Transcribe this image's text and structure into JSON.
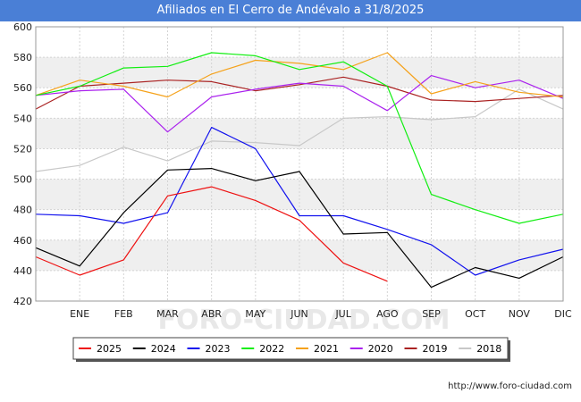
{
  "chart_data": {
    "type": "line",
    "title": "Afiliados en El Cerro de Andévalo a 31/8/2025",
    "xlabel": "",
    "ylabel": "",
    "categories": [
      "",
      "ENE",
      "FEB",
      "MAR",
      "ABR",
      "MAY",
      "JUN",
      "JUL",
      "AGO",
      "SEP",
      "OCT",
      "NOV",
      "DIC"
    ],
    "ylim": [
      420,
      600
    ],
    "yticks": [
      420,
      440,
      460,
      480,
      500,
      520,
      540,
      560,
      580,
      600
    ],
    "grid": true,
    "legend_position": "bottom",
    "watermark": "FORO-CIUDAD.COM",
    "series": [
      {
        "name": "2025",
        "color": "#ee1111",
        "values": [
          449,
          437,
          447,
          489,
          495,
          486,
          473,
          445,
          433,
          null,
          null,
          null,
          null
        ]
      },
      {
        "name": "2024",
        "color": "#000000",
        "values": [
          455,
          443,
          478,
          506,
          507,
          499,
          505,
          464,
          465,
          429,
          442,
          435,
          449
        ]
      },
      {
        "name": "2023",
        "color": "#1111ee",
        "values": [
          477,
          476,
          471,
          478,
          534,
          520,
          476,
          476,
          467,
          457,
          437,
          447,
          454
        ]
      },
      {
        "name": "2022",
        "color": "#11ee11",
        "values": [
          555,
          561,
          573,
          574,
          583,
          581,
          572,
          577,
          561,
          490,
          480,
          471,
          477
        ]
      },
      {
        "name": "2021",
        "color": "#f5a21b",
        "values": [
          555,
          565,
          561,
          554,
          569,
          578,
          576,
          572,
          583,
          556,
          564,
          557,
          554
        ]
      },
      {
        "name": "2020",
        "color": "#aa22ee",
        "values": [
          555,
          558,
          559,
          531,
          554,
          559,
          563,
          561,
          545,
          568,
          560,
          565,
          553
        ]
      },
      {
        "name": "2019",
        "color": "#aa2222",
        "values": [
          546,
          561,
          563,
          565,
          564,
          558,
          562,
          567,
          561,
          552,
          551,
          553,
          555
        ]
      },
      {
        "name": "2018",
        "color": "#c8c8c8",
        "values": [
          505,
          509,
          521,
          512,
          525,
          524,
          522,
          540,
          541,
          539,
          541,
          559,
          546
        ]
      }
    ]
  },
  "credit": "http://www.foro-ciudad.com"
}
